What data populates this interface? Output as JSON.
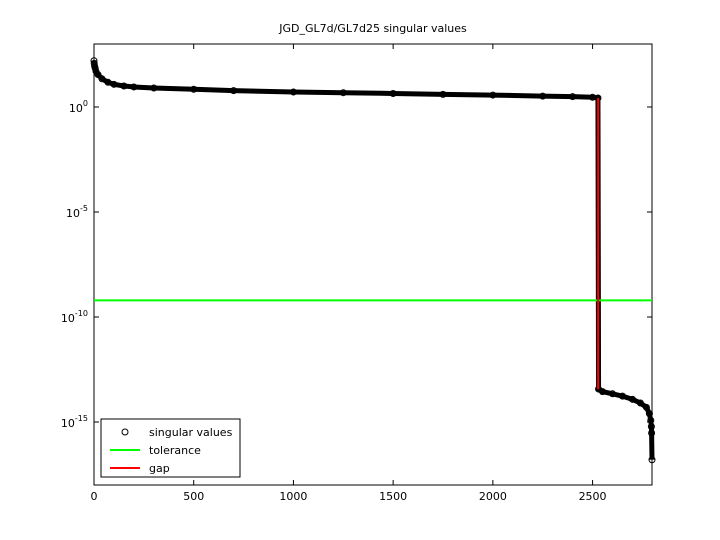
{
  "chart_data": {
    "type": "scatter",
    "title": "JGD_GL7d/GL7d25 singular values",
    "log_y": true,
    "grid": false,
    "legend": "lower left",
    "xlim": [
      0,
      2798
    ],
    "ylim": [
      1e-18,
      1000
    ],
    "xticks": [
      0,
      500,
      1000,
      1500,
      2000,
      2500
    ],
    "yticks": [
      {
        "value": 1,
        "label": "10^0"
      },
      {
        "value": 1e-05,
        "label": "10^-5"
      },
      {
        "value": 1e-10,
        "label": "10^-10"
      },
      {
        "value": 1e-15,
        "label": "10^-15"
      }
    ],
    "series": [
      {
        "name": "singular values",
        "color": "#000000",
        "marker": "circle",
        "x": [
          0,
          1,
          3,
          6,
          10,
          20,
          40,
          70,
          100,
          150,
          200,
          300,
          500,
          700,
          1000,
          1250,
          1500,
          1750,
          2000,
          2250,
          2400,
          2500,
          2527,
          2530,
          2550,
          2600,
          2650,
          2700,
          2740,
          2770,
          2785,
          2792,
          2795,
          2796,
          2798
        ],
        "values": [
          160,
          120,
          90,
          70,
          50,
          35,
          22,
          15,
          12,
          10,
          9,
          8,
          7,
          6,
          5.2,
          4.8,
          4.4,
          4.0,
          3.7,
          3.3,
          3.1,
          2.9,
          2.7,
          3.7e-14,
          2.8e-14,
          2.2e-14,
          1.7e-14,
          1.2e-14,
          8e-15,
          5e-15,
          2.5e-15,
          1.2e-15,
          6e-16,
          3e-16,
          1.6e-17
        ]
      },
      {
        "name": "tolerance",
        "color": "#00ff00",
        "marker": "line",
        "x": [
          0,
          2798
        ],
        "values": [
          6.2e-10,
          6.2e-10
        ]
      },
      {
        "name": "gap",
        "color": "#ff0000",
        "marker": "line",
        "x": [
          2528,
          2528
        ],
        "values": [
          2.7,
          3.7e-14
        ]
      }
    ]
  }
}
